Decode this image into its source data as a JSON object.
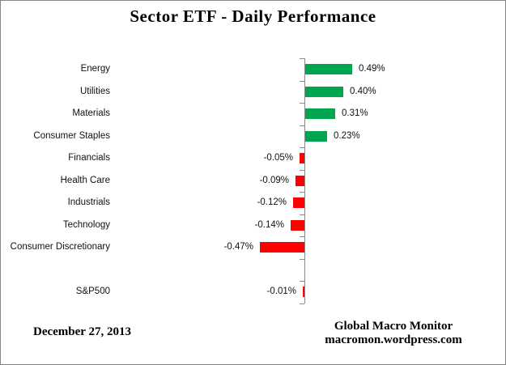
{
  "title": "Sector ETF - Daily Performance",
  "footer": {
    "date": "December 27, 2013",
    "source_line1": "Global Macro Monitor",
    "source_line2": "macromon.wordpress.com"
  },
  "colors": {
    "positive_bar": "#00A54F",
    "negative_bar": "#FF0000",
    "axis": "#898989",
    "border": "#848484"
  },
  "chart_data": {
    "type": "bar",
    "orientation": "horizontal",
    "title": "Sector ETF - Daily Performance",
    "value_unit": "%",
    "grid": false,
    "legend": false,
    "value_axis_range": [
      -0.6,
      0.6
    ],
    "categories": [
      "Energy",
      "Utilities",
      "Materials",
      "Consumer Staples",
      "Financials",
      "Health Care",
      "Industrials",
      "Technology",
      "Consumer Discretionary",
      "",
      "S&P500"
    ],
    "values": [
      0.49,
      0.4,
      0.31,
      0.23,
      -0.05,
      -0.09,
      -0.12,
      -0.14,
      -0.47,
      null,
      -0.01
    ],
    "value_labels": [
      "0.49%",
      "0.40%",
      "0.31%",
      "0.23%",
      "-0.05%",
      "-0.09%",
      "-0.12%",
      "-0.14%",
      "-0.47%",
      "",
      "-0.01%"
    ]
  }
}
